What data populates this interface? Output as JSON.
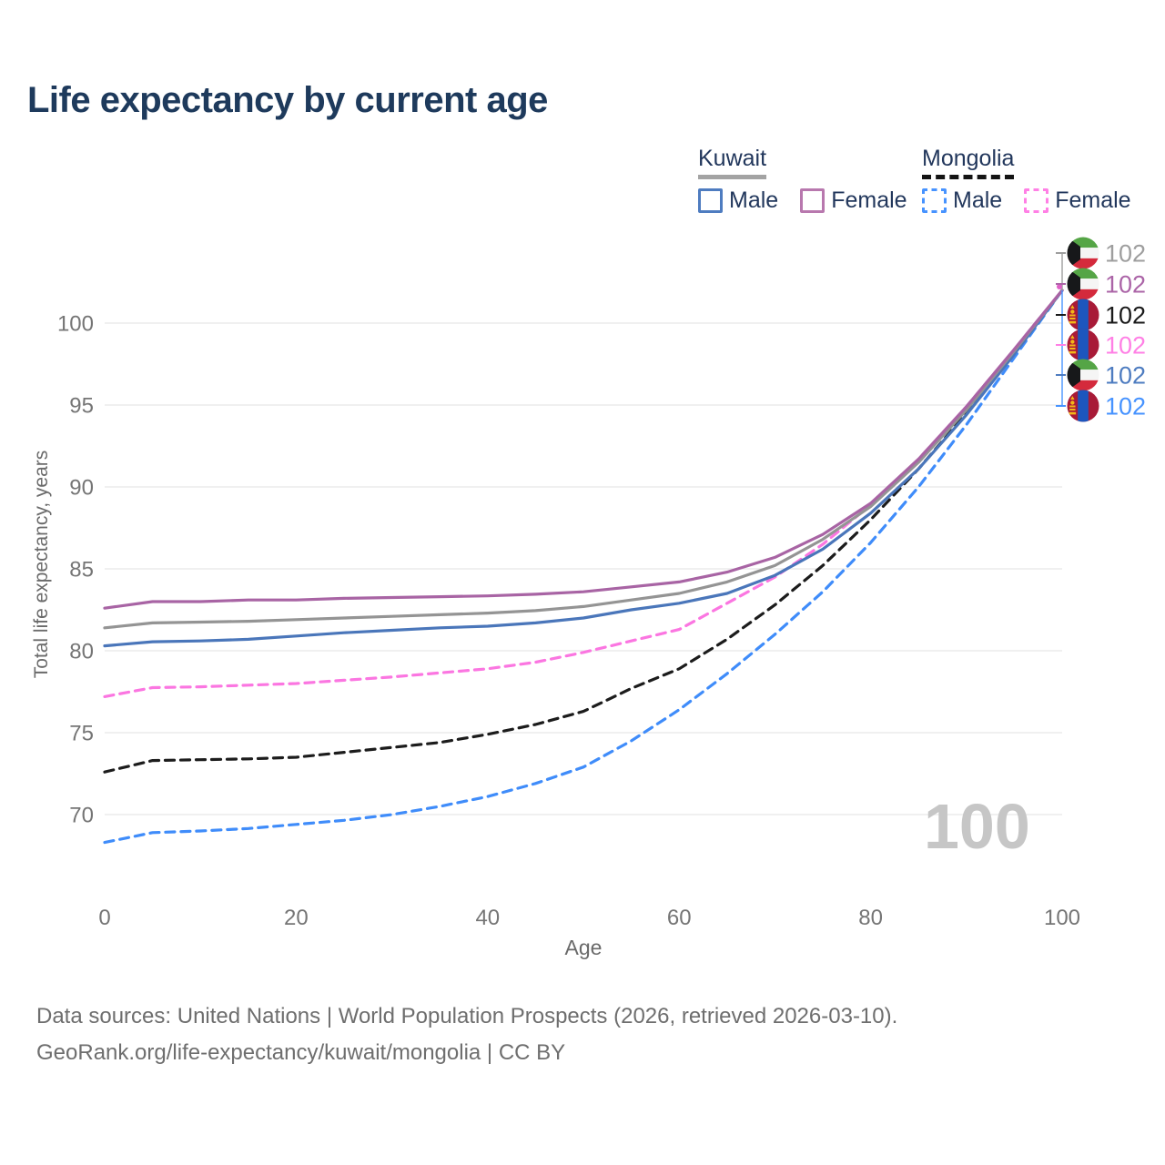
{
  "title": "Life expectancy by current age",
  "legend": {
    "kuwait": {
      "name": "Kuwait",
      "male": "Male",
      "female": "Female"
    },
    "mongolia": {
      "name": "Mongolia",
      "male": "Male",
      "female": "Female"
    }
  },
  "y_axis": {
    "title": "Total life expectancy, years",
    "ticks": [
      70,
      75,
      80,
      85,
      90,
      95,
      100
    ]
  },
  "x_axis": {
    "title": "Age",
    "ticks": [
      0,
      20,
      40,
      60,
      80,
      100
    ]
  },
  "age_indicator": "100",
  "end_labels": [
    {
      "series": "kuwait-total",
      "flag": "kuwait",
      "value": "102",
      "color": "#9e9e9e"
    },
    {
      "series": "kuwait-female",
      "flag": "kuwait",
      "value": "102",
      "color": "#ab64a7"
    },
    {
      "series": "mongolia-total",
      "flag": "mongolia",
      "value": "102",
      "color": "#1a1a1a"
    },
    {
      "series": "mongolia-female",
      "flag": "mongolia",
      "value": "102",
      "color": "#ff80e5"
    },
    {
      "series": "kuwait-male",
      "flag": "kuwait",
      "value": "102",
      "color": "#4e7cc0"
    },
    {
      "series": "mongolia-male",
      "flag": "mongolia",
      "value": "102",
      "color": "#4793ff"
    }
  ],
  "footer": {
    "line1": "Data sources: United Nations | World Population Prospects (2026, retrieved 2026-03-10).",
    "line2": "GeoRank.org/life-expectancy/kuwait/mongolia | CC BY"
  },
  "chart_data": {
    "type": "line",
    "title": "Life expectancy by current age",
    "xlabel": "Age",
    "ylabel": "Total life expectancy, years",
    "xlim": [
      0,
      100
    ],
    "ylim": [
      67,
      103
    ],
    "grid": "horizontal-only",
    "legend_position": "top-right",
    "ages": [
      0,
      5,
      10,
      15,
      20,
      25,
      30,
      35,
      40,
      45,
      50,
      55,
      60,
      65,
      70,
      75,
      80,
      85,
      90,
      95,
      100
    ],
    "series": [
      {
        "key": "mongolia-male",
        "country": "Mongolia",
        "sex": "Male",
        "style": "dashed",
        "color": "#3f8cfa",
        "values": [
          68.3,
          68.9,
          69.0,
          69.15,
          69.4,
          69.65,
          70.0,
          70.5,
          71.1,
          71.9,
          72.9,
          74.5,
          76.4,
          78.6,
          81.0,
          83.6,
          86.6,
          90.0,
          93.8,
          97.9,
          102
        ]
      },
      {
        "key": "mongolia-total",
        "country": "Mongolia",
        "sex": "Both sexes",
        "style": "dashed",
        "color": "#1c1c1c",
        "values": [
          72.6,
          73.3,
          73.35,
          73.4,
          73.5,
          73.8,
          74.1,
          74.4,
          74.9,
          75.5,
          76.3,
          77.7,
          78.9,
          80.7,
          82.8,
          85.2,
          88.0,
          91.1,
          94.5,
          98.2,
          102
        ]
      },
      {
        "key": "mongolia-female",
        "country": "Mongolia",
        "sex": "Female",
        "style": "dashed",
        "color": "#fb76e1",
        "values": [
          77.2,
          77.75,
          77.8,
          77.9,
          78.0,
          78.2,
          78.4,
          78.65,
          78.9,
          79.3,
          79.9,
          80.6,
          81.3,
          82.9,
          84.5,
          86.5,
          88.9,
          91.7,
          94.9,
          98.4,
          102
        ]
      },
      {
        "key": "kuwait-male",
        "country": "Kuwait",
        "sex": "Male",
        "style": "solid",
        "color": "#4a76ba",
        "values": [
          80.3,
          80.55,
          80.6,
          80.7,
          80.9,
          81.1,
          81.25,
          81.4,
          81.5,
          81.7,
          82.0,
          82.5,
          82.9,
          83.5,
          84.6,
          86.2,
          88.4,
          91.1,
          94.4,
          98.1,
          102
        ]
      },
      {
        "key": "kuwait-total",
        "country": "Kuwait",
        "sex": "Both sexes",
        "style": "solid",
        "color": "#949494",
        "values": [
          81.4,
          81.7,
          81.75,
          81.8,
          81.9,
          82.0,
          82.1,
          82.2,
          82.3,
          82.45,
          82.7,
          83.1,
          83.5,
          84.2,
          85.2,
          86.8,
          88.8,
          91.5,
          94.7,
          98.3,
          102
        ]
      },
      {
        "key": "kuwait-female",
        "country": "Kuwait",
        "sex": "Female",
        "style": "solid",
        "color": "#a864a4",
        "values": [
          82.6,
          83.0,
          83.0,
          83.1,
          83.1,
          83.2,
          83.25,
          83.3,
          83.35,
          83.45,
          83.6,
          83.9,
          84.2,
          84.8,
          85.7,
          87.1,
          89.0,
          91.7,
          94.9,
          98.4,
          102
        ]
      }
    ]
  }
}
